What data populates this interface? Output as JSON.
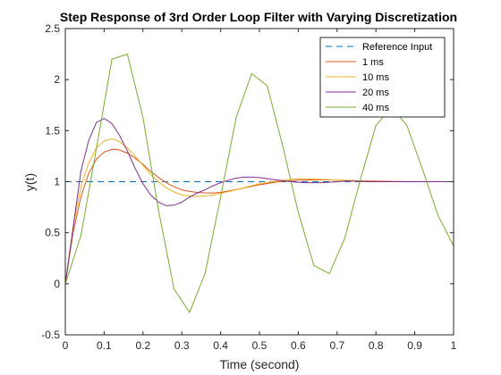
{
  "chart_data": {
    "type": "line",
    "title": "Step Response of 3rd Order Loop Filter with Varying Discretization",
    "xlabel": "Time (second)",
    "ylabel": "y(t)",
    "xlim": [
      0,
      1
    ],
    "ylim": [
      -0.5,
      2.5
    ],
    "xticks": [
      0,
      0.1,
      0.2,
      0.3,
      0.4,
      0.5,
      0.6,
      0.7,
      0.8,
      0.9,
      1
    ],
    "xtick_labels": [
      "0",
      "0.1",
      "0.2",
      "0.3",
      "0.4",
      "0.5",
      "0.6",
      "0.7",
      "0.8",
      "0.9",
      "1"
    ],
    "yticks": [
      -0.5,
      0,
      0.5,
      1,
      1.5,
      2,
      2.5
    ],
    "ytick_labels": [
      "-0.5",
      "0",
      "0.5",
      "1",
      "1.5",
      "2",
      "2.5"
    ],
    "grid": false,
    "legend_position": "top-right",
    "series": [
      {
        "name": "Reference Input",
        "color": "#0072BD",
        "dash": "dashed",
        "x": [
          0,
          1
        ],
        "y": [
          1,
          1
        ]
      },
      {
        "name": "1 ms",
        "color": "#D95319",
        "dash": "solid",
        "x": [
          0,
          0.02,
          0.04,
          0.06,
          0.08,
          0.1,
          0.12,
          0.13,
          0.14,
          0.16,
          0.18,
          0.2,
          0.22,
          0.24,
          0.26,
          0.28,
          0.3,
          0.32,
          0.34,
          0.36,
          0.38,
          0.4,
          0.45,
          0.5,
          0.55,
          0.6,
          0.65,
          0.7,
          0.8,
          0.9,
          1.0
        ],
        "y": [
          0,
          0.5,
          0.85,
          1.08,
          1.22,
          1.29,
          1.315,
          1.318,
          1.31,
          1.28,
          1.23,
          1.17,
          1.1,
          1.04,
          0.99,
          0.95,
          0.92,
          0.905,
          0.895,
          0.89,
          0.89,
          0.895,
          0.93,
          0.97,
          1.0,
          1.015,
          1.02,
          1.015,
          1.005,
          1.0,
          1.0
        ]
      },
      {
        "name": "10 ms",
        "color": "#EDB120",
        "dash": "solid",
        "x": [
          0,
          0.02,
          0.04,
          0.06,
          0.08,
          0.1,
          0.12,
          0.13,
          0.14,
          0.16,
          0.18,
          0.2,
          0.22,
          0.24,
          0.26,
          0.28,
          0.3,
          0.32,
          0.34,
          0.36,
          0.38,
          0.4,
          0.45,
          0.5,
          0.55,
          0.6,
          0.65,
          0.7,
          0.8,
          0.9,
          1.0
        ],
        "y": [
          0,
          0.55,
          0.95,
          1.18,
          1.33,
          1.4,
          1.42,
          1.41,
          1.39,
          1.33,
          1.25,
          1.16,
          1.07,
          1.0,
          0.94,
          0.9,
          0.87,
          0.86,
          0.855,
          0.86,
          0.87,
          0.885,
          0.93,
          0.98,
          1.01,
          1.03,
          1.025,
          1.015,
          1.0,
          1.0,
          1.0
        ]
      },
      {
        "name": "20 ms",
        "color": "#7E2F8E",
        "dash": "solid",
        "x": [
          0,
          0.02,
          0.04,
          0.06,
          0.08,
          0.1,
          0.12,
          0.14,
          0.16,
          0.18,
          0.2,
          0.22,
          0.24,
          0.26,
          0.28,
          0.3,
          0.32,
          0.34,
          0.36,
          0.38,
          0.4,
          0.42,
          0.44,
          0.46,
          0.48,
          0.5,
          0.52,
          0.54,
          0.56,
          0.58,
          0.6,
          0.62,
          0.64,
          0.66,
          0.68,
          0.7,
          0.72,
          0.74,
          0.76,
          0.78,
          0.8,
          0.85,
          0.9,
          1.0
        ],
        "y": [
          0,
          0.55,
          1.1,
          1.4,
          1.58,
          1.62,
          1.57,
          1.45,
          1.3,
          1.13,
          0.98,
          0.87,
          0.8,
          0.765,
          0.77,
          0.8,
          0.85,
          0.89,
          0.92,
          0.96,
          0.99,
          1.015,
          1.035,
          1.045,
          1.045,
          1.04,
          1.03,
          1.02,
          1.01,
          1.0,
          0.995,
          0.99,
          0.99,
          0.99,
          0.995,
          1.0,
          1.005,
          1.005,
          1.003,
          1.0,
          1.0,
          1.0,
          1.0,
          1.0
        ]
      },
      {
        "name": "40 ms",
        "color": "#77AC30",
        "dash": "solid",
        "x": [
          0,
          0.04,
          0.08,
          0.12,
          0.16,
          0.2,
          0.24,
          0.28,
          0.32,
          0.36,
          0.4,
          0.44,
          0.48,
          0.52,
          0.56,
          0.6,
          0.64,
          0.68,
          0.72,
          0.76,
          0.8,
          0.84,
          0.88,
          0.92,
          0.96,
          1.0
        ],
        "y": [
          0,
          0.47,
          1.32,
          2.2,
          2.25,
          1.63,
          0.72,
          -0.05,
          -0.28,
          0.1,
          0.85,
          1.63,
          2.06,
          1.94,
          1.35,
          0.7,
          0.18,
          0.1,
          0.45,
          1.02,
          1.55,
          1.73,
          1.55,
          1.12,
          0.67,
          0.37
        ]
      }
    ]
  }
}
